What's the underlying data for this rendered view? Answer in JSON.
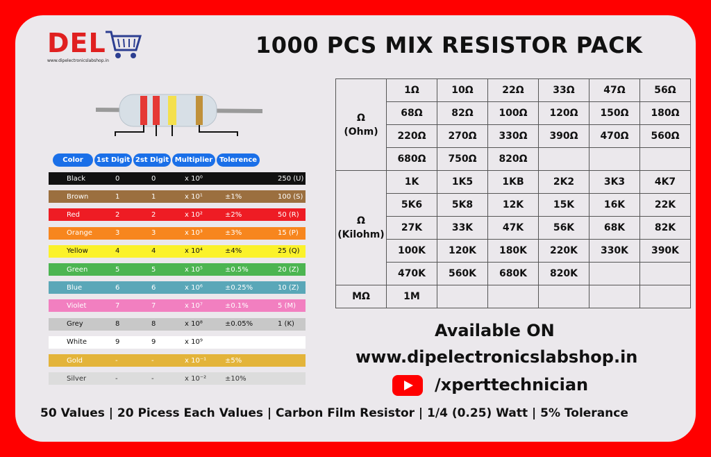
{
  "logo": {
    "text": "DEL",
    "url": "www.dipelectronicslabshop.in"
  },
  "title": "1000 PCS MIX RESISTOR PACK",
  "color_code": {
    "headers": [
      "Color",
      "1st Digit",
      "2st Digit",
      "Multiplier",
      "Tolerence"
    ],
    "rows": [
      {
        "name": "Black",
        "d1": "0",
        "d2": "0",
        "mult": "x 10⁰",
        "tol": "",
        "temp": "250 (U)",
        "bg": "#111111",
        "fg": "#ffffff"
      },
      {
        "name": "Brown",
        "d1": "1",
        "d2": "1",
        "mult": "x 10¹",
        "tol": "±1%",
        "temp": "100 (S)",
        "bg": "#9b6f3f",
        "fg": "#ffffff"
      },
      {
        "name": "Red",
        "d1": "2",
        "d2": "2",
        "mult": "x 10²",
        "tol": "±2%",
        "temp": "50 (R)",
        "bg": "#ee1c24",
        "fg": "#ffffff"
      },
      {
        "name": "Orange",
        "d1": "3",
        "d2": "3",
        "mult": "x 10³",
        "tol": "±3%",
        "temp": "15 (P)",
        "bg": "#f7861e",
        "fg": "#ffffff"
      },
      {
        "name": "Yellow",
        "d1": "4",
        "d2": "4",
        "mult": "x 10⁴",
        "tol": "±4%",
        "temp": "25 (Q)",
        "bg": "#fbf22a",
        "fg": "#111111"
      },
      {
        "name": "Green",
        "d1": "5",
        "d2": "5",
        "mult": "x 10⁵",
        "tol": "±0.5%",
        "temp": "20 (Z)",
        "bg": "#4cb551",
        "fg": "#ffffff"
      },
      {
        "name": "Blue",
        "d1": "6",
        "d2": "6",
        "mult": "x 10⁶",
        "tol": "±0.25%",
        "temp": "10 (Z)",
        "bg": "#5aa7b8",
        "fg": "#ffffff"
      },
      {
        "name": "Violet",
        "d1": "7",
        "d2": "7",
        "mult": "x 10⁷",
        "tol": "±0.1%",
        "temp": "5 (M)",
        "bg": "#f27fc0",
        "fg": "#ffffff"
      },
      {
        "name": "Grey",
        "d1": "8",
        "d2": "8",
        "mult": "x 10⁸",
        "tol": "±0.05%",
        "temp": "1 (K)",
        "bg": "#c8c8c8",
        "fg": "#111111"
      },
      {
        "name": "White",
        "d1": "9",
        "d2": "9",
        "mult": "x 10⁹",
        "tol": "",
        "temp": "",
        "bg": "#ffffff",
        "fg": "#111111"
      },
      {
        "name": "Gold",
        "d1": "-",
        "d2": "-",
        "mult": "x 10⁻¹",
        "tol": "±5%",
        "temp": "",
        "bg": "#e3b43a",
        "fg": "#ffffff"
      },
      {
        "name": "Silver",
        "d1": "-",
        "d2": "-",
        "mult": "x 10⁻²",
        "tol": "±10%",
        "temp": "",
        "bg": "#dcdcdc",
        "fg": "#333333"
      }
    ]
  },
  "values_table": {
    "groups": [
      {
        "unit": "Ω",
        "unit_name": "(Ohm)",
        "rows": [
          [
            "1Ω",
            "10Ω",
            "22Ω",
            "33Ω",
            "47Ω",
            "56Ω"
          ],
          [
            "68Ω",
            "82Ω",
            "100Ω",
            "120Ω",
            "150Ω",
            "180Ω"
          ],
          [
            "220Ω",
            "270Ω",
            "330Ω",
            "390Ω",
            "470Ω",
            "560Ω"
          ],
          [
            "680Ω",
            "750Ω",
            "820Ω",
            "",
            "",
            ""
          ]
        ]
      },
      {
        "unit": "Ω",
        "unit_name": "(Kilohm)",
        "rows": [
          [
            "1K",
            "1K5",
            "1KB",
            "2K2",
            "3K3",
            "4K7"
          ],
          [
            "5K6",
            "5K8",
            "12K",
            "15K",
            "16K",
            "22K"
          ],
          [
            "27K",
            "33K",
            "47K",
            "56K",
            "68K",
            "82K"
          ],
          [
            "100K",
            "120K",
            "180K",
            "220K",
            "330K",
            "390K"
          ],
          [
            "470K",
            "560K",
            "680K",
            "820K",
            "",
            ""
          ]
        ]
      },
      {
        "unit": "MΩ",
        "unit_name": "",
        "rows": [
          [
            "1M",
            "",
            "",
            "",
            "",
            ""
          ]
        ]
      }
    ]
  },
  "available": "Available ON",
  "site": "www.dipelectronicslabshop.in",
  "handle": "/xperttechnician",
  "footer": "50 Values | 20 Picess Each Values | Carbon Film Resistor | 1/4 (0.25) Watt | 5% Tolerance"
}
